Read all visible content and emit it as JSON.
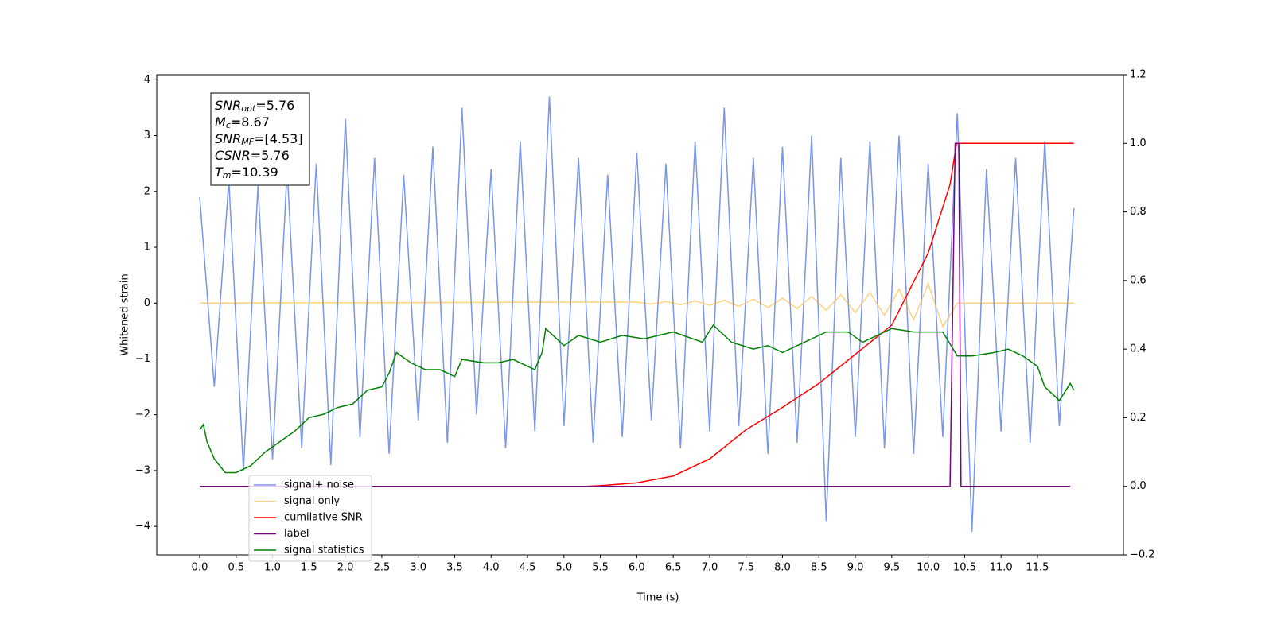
{
  "chart_data": {
    "type": "line",
    "xlabel": "Time (s)",
    "ylabel": "Whitened strain",
    "xlim": [
      -0.59,
      12.68
    ],
    "ylim": [
      -4.51,
      4.09
    ],
    "y2lim": [
      -0.2,
      1.2
    ],
    "xticks": [
      {
        "value": 0,
        "label": "0.0"
      },
      0.5,
      {
        "value": 1,
        "label": "1.0"
      },
      1.5,
      {
        "value": 2,
        "label": "2.0"
      },
      2.5,
      {
        "value": 3,
        "label": "3.0"
      },
      3.5,
      {
        "value": 4,
        "label": "4.0"
      },
      4.5,
      {
        "value": 5,
        "label": "5.0"
      },
      5.5,
      {
        "value": 6,
        "label": "6.0"
      },
      6.5,
      {
        "value": 7,
        "label": "7.0"
      },
      7.5,
      {
        "value": 8,
        "label": "8.0"
      },
      8.5,
      {
        "value": 9,
        "label": "9.0"
      },
      9.5,
      {
        "value": 10,
        "label": "10.0"
      },
      10.5,
      {
        "value": 11,
        "label": "11.0"
      },
      11.5
    ],
    "yticks": [
      {
        "value": -4,
        "label": "−4"
      },
      {
        "value": -3,
        "label": "−3"
      },
      {
        "value": -2,
        "label": "−2"
      },
      {
        "value": -1,
        "label": "−1"
      },
      0,
      1,
      2,
      3,
      4
    ],
    "y2ticks": [
      {
        "value": -0.2,
        "label": "−0.2"
      },
      {
        "value": 0,
        "label": "0.0"
      },
      0.2,
      0.4,
      0.6,
      0.8,
      {
        "value": 1,
        "label": "1.0"
      },
      1.2
    ],
    "annotation": [
      {
        "name": "SNR",
        "sub": "opt",
        "text": "=5.76"
      },
      {
        "name": "M",
        "sub": "c",
        "text": "=8.67"
      },
      {
        "name": "SNR",
        "sub": "MF",
        "text": "=[4.53]"
      },
      {
        "name": "CSNR",
        "sub": "",
        "text": "=5.76"
      },
      {
        "name": "T",
        "sub": "m",
        "text": "=10.39"
      }
    ],
    "series": [
      {
        "name": "signal+ noise",
        "color": "#4169e1",
        "opacity": 0.7,
        "x": [
          0,
          0.2,
          0.4,
          0.6,
          0.8,
          1.0,
          1.2,
          1.4,
          1.6,
          1.8,
          2.0,
          2.2,
          2.4,
          2.6,
          2.8,
          3.0,
          3.2,
          3.4,
          3.6,
          3.8,
          4.0,
          4.2,
          4.4,
          4.6,
          4.8,
          5.0,
          5.2,
          5.4,
          5.6,
          5.8,
          6.0,
          6.2,
          6.4,
          6.6,
          6.8,
          7.0,
          7.2,
          7.4,
          7.6,
          7.8,
          8.0,
          8.2,
          8.4,
          8.6,
          8.8,
          9.0,
          9.2,
          9.4,
          9.6,
          9.8,
          10.0,
          10.2,
          10.4,
          10.6,
          10.8,
          11.0,
          11.2,
          11.4,
          11.6,
          11.8,
          12.0
        ],
        "values": [
          1.9,
          -1.5,
          2.2,
          -3.0,
          2.1,
          -2.8,
          2.4,
          -2.6,
          2.5,
          -2.9,
          3.3,
          -2.4,
          2.6,
          -2.7,
          2.3,
          -2.1,
          2.8,
          -2.5,
          3.5,
          -2.0,
          2.4,
          -2.6,
          2.9,
          -2.3,
          3.7,
          -2.2,
          2.6,
          -2.5,
          2.3,
          -2.4,
          2.7,
          -2.1,
          2.5,
          -2.6,
          2.9,
          -2.3,
          3.5,
          -2.2,
          2.6,
          -2.7,
          2.8,
          -2.5,
          3.0,
          -3.9,
          2.6,
          -2.4,
          2.9,
          -2.6,
          3.0,
          -2.7,
          2.5,
          -2.4,
          3.4,
          -4.1,
          2.4,
          -2.3,
          2.6,
          -2.5,
          2.9,
          -2.2,
          1.7
        ]
      },
      {
        "name": "signal only",
        "color": "#ffa500",
        "opacity": 0.5,
        "x": [
          0,
          6.0,
          6.2,
          6.4,
          6.6,
          6.8,
          7.0,
          7.2,
          7.4,
          7.6,
          7.8,
          8.0,
          8.2,
          8.4,
          8.6,
          8.8,
          9.0,
          9.2,
          9.4,
          9.6,
          9.8,
          10.0,
          10.2,
          10.4,
          12.0
        ],
        "values": [
          0,
          0.02,
          -0.02,
          0.03,
          -0.03,
          0.04,
          -0.04,
          0.05,
          -0.06,
          0.07,
          -0.08,
          0.09,
          -0.1,
          0.12,
          -0.13,
          0.15,
          -0.17,
          0.19,
          -0.22,
          0.25,
          -0.3,
          0.35,
          -0.42,
          0,
          0
        ]
      },
      {
        "name": "cumilative SNR",
        "color": "#ff0000",
        "axis": "y2",
        "x": [
          0,
          5.3,
          5.5,
          6.0,
          6.5,
          7.0,
          7.5,
          8.0,
          8.5,
          9.0,
          9.5,
          10.0,
          10.3,
          10.39,
          12.0
        ],
        "values": [
          0,
          0,
          0.002,
          0.01,
          0.03,
          0.08,
          0.165,
          0.23,
          0.3,
          0.385,
          0.47,
          0.68,
          0.88,
          1.0,
          1.0
        ]
      },
      {
        "name": "label",
        "color": "#800080",
        "axis": "y2",
        "x": [
          0,
          10.3,
          10.37,
          10.42,
          10.45,
          11.95
        ],
        "values": [
          0,
          0,
          1,
          1,
          0,
          0
        ]
      },
      {
        "name": "signal statistics",
        "color": "#008000",
        "axis": "y2",
        "x": [
          0,
          0.05,
          0.1,
          0.2,
          0.35,
          0.5,
          0.7,
          0.9,
          1.1,
          1.3,
          1.5,
          1.7,
          1.9,
          2.1,
          2.3,
          2.5,
          2.6,
          2.7,
          2.9,
          3.1,
          3.3,
          3.5,
          3.6,
          3.9,
          4.1,
          4.3,
          4.5,
          4.6,
          4.7,
          4.75,
          4.9,
          5.0,
          5.2,
          5.5,
          5.8,
          6.1,
          6.5,
          6.9,
          7.05,
          7.3,
          7.6,
          7.8,
          8.0,
          8.3,
          8.6,
          8.9,
          9.1,
          9.5,
          9.8,
          10.0,
          10.2,
          10.4,
          10.6,
          10.9,
          11.1,
          11.3,
          11.5,
          11.6,
          11.8,
          11.95,
          12.0
        ],
        "values": [
          0.165,
          0.18,
          0.13,
          0.08,
          0.04,
          0.04,
          0.06,
          0.1,
          0.13,
          0.16,
          0.2,
          0.21,
          0.23,
          0.24,
          0.28,
          0.29,
          0.33,
          0.39,
          0.36,
          0.34,
          0.34,
          0.32,
          0.37,
          0.36,
          0.36,
          0.37,
          0.35,
          0.34,
          0.39,
          0.46,
          0.43,
          0.41,
          0.44,
          0.42,
          0.44,
          0.43,
          0.45,
          0.42,
          0.47,
          0.42,
          0.4,
          0.41,
          0.39,
          0.42,
          0.45,
          0.45,
          0.42,
          0.46,
          0.45,
          0.45,
          0.45,
          0.38,
          0.38,
          0.39,
          0.4,
          0.38,
          0.35,
          0.29,
          0.25,
          0.3,
          0.28
        ]
      }
    ]
  }
}
